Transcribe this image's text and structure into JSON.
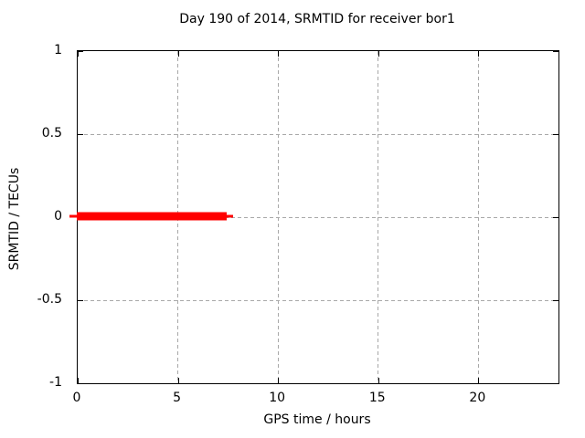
{
  "title": "Day 190 of 2014, SRMTID for receiver bor1",
  "chart_data": {
    "type": "line",
    "title": "Day 190 of 2014, SRMTID for receiver bor1",
    "xlabel": "GPS time / hours",
    "ylabel": "SRMTID / TECUs",
    "xlim": [
      0,
      24
    ],
    "ylim": [
      -1,
      1
    ],
    "xticks": [
      0,
      5,
      10,
      15,
      20
    ],
    "yticks": [
      -1,
      -0.5,
      0,
      0.5,
      1
    ],
    "grid": "dashed",
    "legend": "none",
    "series": [
      {
        "name": "SRMTID",
        "color": "#ff0000",
        "points": [
          {
            "x": 0.0,
            "y": 0.0
          },
          {
            "x": 7.5,
            "y": 0.0
          }
        ]
      }
    ],
    "colors": {
      "grid": "#a8a8a8",
      "axis": "#000000",
      "background": "#ffffff",
      "text": "#000000"
    }
  }
}
